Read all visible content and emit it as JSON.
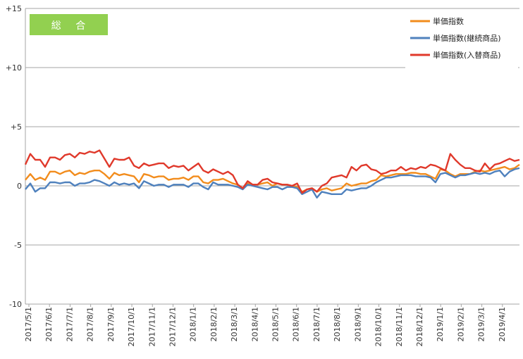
{
  "panel": {
    "label": "総 合",
    "color": "#92d050"
  },
  "chart_data": {
    "type": "line",
    "title": "",
    "xlabel": "",
    "ylabel": "",
    "ylim": [
      -10,
      15
    ],
    "yticks": [
      {
        "value": 15,
        "label": "+15"
      },
      {
        "value": 10,
        "label": "+10"
      },
      {
        "value": 5,
        "label": "+5"
      },
      {
        "value": 0,
        "label": "0"
      },
      {
        "value": -5,
        "label": "-5"
      },
      {
        "value": -10,
        "label": "-10"
      }
    ],
    "grid": "horizontal",
    "legend_position": "top-right",
    "x_tick_labels": [
      "2017/5/1",
      "2017/6/1",
      "2017/7/1",
      "2017/8/1",
      "2017/9/1",
      "2017/10/1",
      "2017/11/1",
      "2017/12/1",
      "2018/1/1",
      "2018/2/1",
      "2018/3/1",
      "2018/4/1",
      "2018/5/1",
      "2018/6/1",
      "2018/7/1",
      "2018/8/1",
      "2018/9/1",
      "2018/10/1",
      "2018/11/1",
      "2018/12/1",
      "2019/1/1",
      "2019/2/1",
      "2019/3/1",
      "2019/4/1"
    ],
    "x_note": "weekly observations from 2017/5/1 to 2019/4/29",
    "series": [
      {
        "name": "単価指数",
        "color": "#f28c1c",
        "values": [
          0.5,
          1.0,
          0.5,
          0.7,
          0.5,
          1.2,
          1.2,
          1.0,
          1.2,
          1.3,
          0.9,
          1.1,
          1.0,
          1.2,
          1.3,
          1.3,
          1.0,
          0.6,
          1.1,
          0.9,
          1.0,
          0.9,
          0.8,
          0.3,
          1.0,
          0.9,
          0.7,
          0.8,
          0.8,
          0.5,
          0.6,
          0.6,
          0.7,
          0.5,
          0.8,
          0.8,
          0.3,
          0.2,
          0.5,
          0.5,
          0.6,
          0.4,
          0.2,
          0.1,
          -0.2,
          0.2,
          0.1,
          0.1,
          0.2,
          0.3,
          0.0,
          0.2,
          0.1,
          0.1,
          0.0,
          -0.1,
          -0.5,
          -0.3,
          -0.2,
          -0.5,
          -0.3,
          -0.2,
          -0.4,
          -0.3,
          -0.2,
          0.2,
          0.0,
          0.1,
          0.2,
          0.2,
          0.4,
          0.5,
          0.9,
          0.8,
          0.9,
          1.0,
          1.0,
          1.0,
          1.1,
          1.1,
          1.0,
          1.0,
          0.8,
          0.6,
          1.4,
          1.3,
          1.0,
          0.8,
          1.0,
          1.0,
          1.0,
          1.2,
          1.3,
          1.2,
          1.3,
          1.4,
          1.5,
          1.6,
          1.4,
          1.5,
          1.8
        ]
      },
      {
        "name": "単価指数(継続商品)",
        "color": "#4f81bd",
        "values": [
          -0.3,
          0.2,
          -0.5,
          -0.2,
          -0.2,
          0.3,
          0.3,
          0.2,
          0.3,
          0.3,
          0.0,
          0.2,
          0.2,
          0.3,
          0.5,
          0.4,
          0.2,
          0.0,
          0.3,
          0.1,
          0.2,
          0.1,
          0.2,
          -0.2,
          0.4,
          0.2,
          0.0,
          0.1,
          0.1,
          -0.1,
          0.1,
          0.1,
          0.1,
          -0.1,
          0.2,
          0.2,
          -0.1,
          -0.3,
          0.3,
          0.1,
          0.1,
          0.1,
          0.0,
          -0.1,
          -0.3,
          0.1,
          0.0,
          -0.1,
          -0.2,
          -0.3,
          -0.1,
          -0.1,
          -0.3,
          -0.1,
          -0.1,
          -0.2,
          -0.7,
          -0.5,
          -0.3,
          -1.0,
          -0.5,
          -0.6,
          -0.7,
          -0.7,
          -0.7,
          -0.3,
          -0.4,
          -0.3,
          -0.2,
          -0.2,
          0.0,
          0.3,
          0.5,
          0.7,
          0.7,
          0.8,
          0.9,
          0.9,
          0.9,
          0.8,
          0.8,
          0.8,
          0.7,
          0.3,
          1.0,
          1.1,
          0.9,
          0.7,
          0.9,
          0.9,
          1.0,
          1.1,
          1.0,
          1.1,
          1.0,
          1.2,
          1.3,
          0.8,
          1.2,
          1.4,
          1.5
        ]
      },
      {
        "name": "単価指数(入替商品)",
        "color": "#e0392b",
        "values": [
          1.8,
          2.7,
          2.2,
          2.2,
          1.6,
          2.4,
          2.4,
          2.2,
          2.6,
          2.7,
          2.4,
          2.8,
          2.7,
          2.9,
          2.8,
          3.0,
          2.3,
          1.6,
          2.3,
          2.2,
          2.2,
          2.4,
          1.7,
          1.5,
          1.9,
          1.7,
          1.8,
          1.9,
          1.9,
          1.5,
          1.7,
          1.6,
          1.7,
          1.3,
          1.6,
          1.9,
          1.3,
          1.1,
          1.4,
          1.2,
          1.0,
          1.2,
          0.9,
          0.1,
          -0.2,
          0.4,
          0.1,
          0.1,
          0.5,
          0.6,
          0.3,
          0.2,
          0.1,
          0.1,
          0.0,
          0.2,
          -0.6,
          -0.3,
          -0.2,
          -0.5,
          0.0,
          0.2,
          0.7,
          0.8,
          0.9,
          0.7,
          1.6,
          1.3,
          1.7,
          1.8,
          1.4,
          1.3,
          1.0,
          1.1,
          1.3,
          1.3,
          1.6,
          1.3,
          1.5,
          1.4,
          1.6,
          1.5,
          1.8,
          1.7,
          1.5,
          1.3,
          2.7,
          2.2,
          1.8,
          1.5,
          1.5,
          1.3,
          1.2,
          1.9,
          1.4,
          1.8,
          1.9,
          2.1,
          2.3,
          2.1,
          2.2
        ]
      }
    ]
  }
}
